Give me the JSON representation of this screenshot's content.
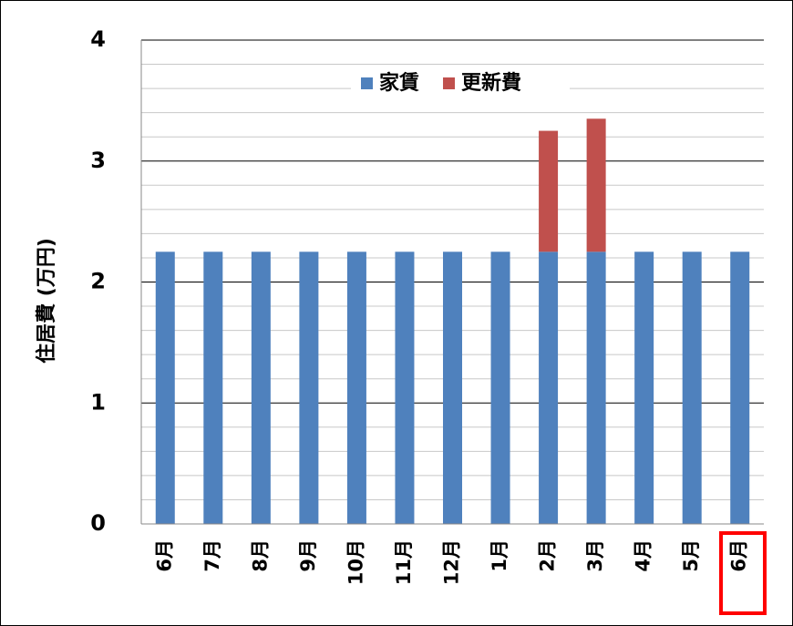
{
  "chart_data": {
    "type": "stacked_bar",
    "y_label": "住居費 (万円)",
    "categories": [
      "6月",
      "7月",
      "8月",
      "9月",
      "10月",
      "11月",
      "12月",
      "1月",
      "2月",
      "3月",
      "4月",
      "5月",
      "6月"
    ],
    "series": [
      {
        "name": "家賃",
        "color": "#4f81bd",
        "values": [
          2.25,
          2.25,
          2.25,
          2.25,
          2.25,
          2.25,
          2.25,
          2.25,
          2.25,
          2.25,
          2.25,
          2.25,
          2.25
        ]
      },
      {
        "name": "更新費",
        "color": "#c0504d",
        "values": [
          null,
          null,
          null,
          null,
          null,
          null,
          null,
          null,
          1.0,
          1.1,
          null,
          null,
          null
        ]
      }
    ],
    "ylim": [
      0,
      4
    ],
    "yticks": [
      0,
      1,
      2,
      3,
      4
    ],
    "minor_yticks": [
      0.2,
      0.4,
      0.6,
      0.8,
      1.2,
      1.4,
      1.6,
      1.8,
      2.2,
      2.4,
      2.6,
      2.8,
      3.2,
      3.4,
      3.6,
      3.8
    ],
    "grid": true,
    "legend": "top"
  }
}
